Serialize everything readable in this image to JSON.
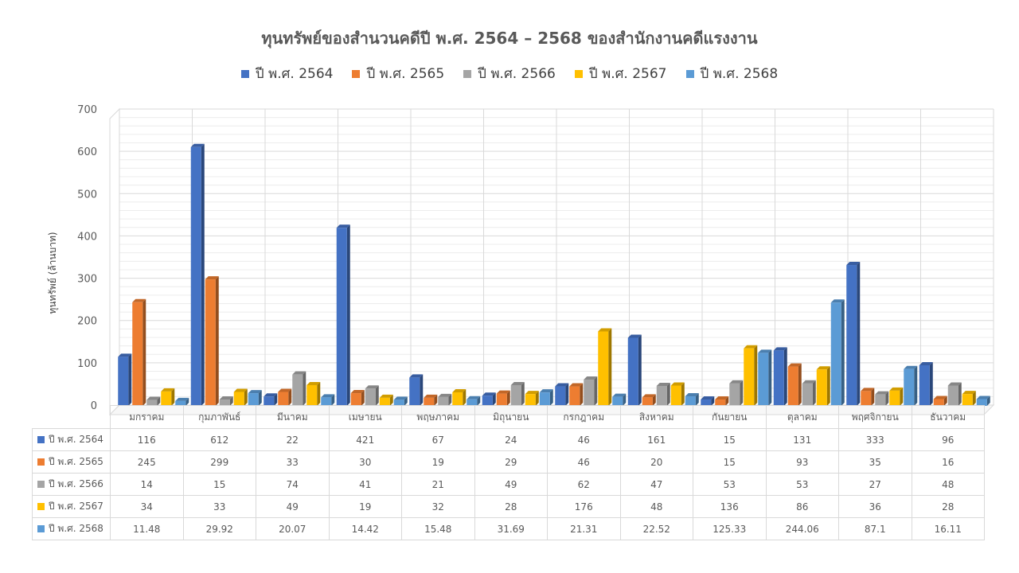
{
  "chart_data": {
    "type": "bar",
    "title": "ทุนทรัพย์ของสำนวนคดีปี พ.ศ. 2564 – 2568 ของสำนักงานคดีแรงงาน",
    "ylabel": "ทุนทรัพย์ (ล้านบาท)",
    "xlabel": "",
    "ylim": [
      0,
      700
    ],
    "yticks": [
      0,
      100,
      200,
      300,
      400,
      500,
      600,
      700
    ],
    "grid": true,
    "legend_position": "top",
    "categories": [
      "มกราคม",
      "กุมภาพันธ์",
      "มีนาคม",
      "เมษายน",
      "พฤษภาคม",
      "มิถุนายน",
      "กรกฎาคม",
      "สิงหาคม",
      "กันยายน",
      "ตุลาคม",
      "พฤศจิกายน",
      "ธันวาคม"
    ],
    "series": [
      {
        "name": "ปี พ.ศ. 2564",
        "color": "#4472c4",
        "values": [
          116,
          612,
          22,
          421,
          67,
          24,
          46,
          161,
          15,
          131,
          333,
          96
        ],
        "labels": [
          "116",
          "612",
          "22",
          "421",
          "67",
          "24",
          "46",
          "161",
          "15",
          "131",
          "333",
          "96"
        ]
      },
      {
        "name": "ปี พ.ศ. 2565",
        "color": "#ed7d31",
        "values": [
          245,
          299,
          33,
          30,
          19,
          29,
          46,
          20,
          15,
          93,
          35,
          16
        ],
        "labels": [
          "245",
          "299",
          "33",
          "30",
          "19",
          "29",
          "46",
          "20",
          "15",
          "93",
          "35",
          "16"
        ]
      },
      {
        "name": "ปี พ.ศ. 2566",
        "color": "#a5a5a5",
        "values": [
          14,
          15,
          74,
          41,
          21,
          49,
          62,
          47,
          53,
          53,
          27,
          48
        ],
        "labels": [
          "14",
          "15",
          "74",
          "41",
          "21",
          "49",
          "62",
          "47",
          "53",
          "53",
          "27",
          "48"
        ]
      },
      {
        "name": "ปี พ.ศ. 2567",
        "color": "#ffc000",
        "values": [
          34,
          33,
          49,
          19,
          32,
          28,
          176,
          48,
          136,
          86,
          36,
          28
        ],
        "labels": [
          "34",
          "33",
          "49",
          "19",
          "32",
          "28",
          "176",
          "48",
          "136",
          "86",
          "36",
          "28"
        ]
      },
      {
        "name": "ปี พ.ศ. 2568",
        "color": "#5b9bd5",
        "values": [
          11.48,
          29.92,
          20.07,
          14.42,
          15.48,
          31.69,
          21.31,
          22.52,
          125.33,
          244.06,
          87.1,
          16.11
        ],
        "labels": [
          "11.48",
          "29.92",
          "20.07",
          "14.42",
          "15.48",
          "31.69",
          "21.31",
          "22.52",
          "125.33",
          "244.06",
          "87.1",
          "16.11"
        ]
      }
    ]
  }
}
